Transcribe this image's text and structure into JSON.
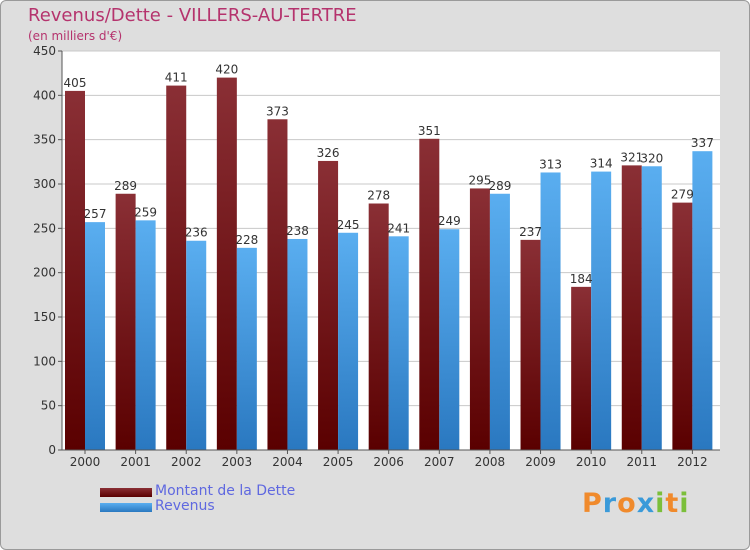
{
  "title": "Revenus/Dette - VILLERS-AU-TERTRE",
  "subtitle": "(en milliers d'€)",
  "logo": {
    "text": "Proxiti",
    "letters": [
      {
        "char": "P",
        "color": "#f08a2c"
      },
      {
        "char": "r",
        "color": "#3a9ad9"
      },
      {
        "char": "o",
        "color": "#f08a2c"
      },
      {
        "char": "x",
        "color": "#3a9ad9"
      },
      {
        "char": "i",
        "color": "#7bbf3a"
      },
      {
        "char": "t",
        "color": "#f08a2c"
      },
      {
        "char": "i",
        "color": "#7bbf3a"
      }
    ]
  },
  "legend": [
    {
      "label": "Montant de la Dette",
      "color": "#6b0f12"
    },
    {
      "label": "Revenus",
      "color": "#3d8fd6"
    }
  ],
  "chart_data": {
    "type": "bar",
    "categories": [
      "2000",
      "2001",
      "2002",
      "2003",
      "2004",
      "2005",
      "2006",
      "2007",
      "2008",
      "2009",
      "2010",
      "2011",
      "2012"
    ],
    "series": [
      {
        "name": "Montant de la Dette",
        "color": "#6b0f12",
        "values": [
          405,
          289,
          411,
          420,
          373,
          326,
          278,
          351,
          295,
          237,
          184,
          321,
          279
        ]
      },
      {
        "name": "Revenus",
        "color": "#3d8fd6",
        "values": [
          257,
          259,
          236,
          228,
          238,
          245,
          241,
          249,
          289,
          313,
          314,
          320,
          337
        ]
      }
    ],
    "ylim": [
      0,
      450
    ],
    "yticks": [
      0,
      50,
      100,
      150,
      200,
      250,
      300,
      350,
      400,
      450
    ],
    "grid": true,
    "xlabel": "",
    "ylabel": ""
  }
}
